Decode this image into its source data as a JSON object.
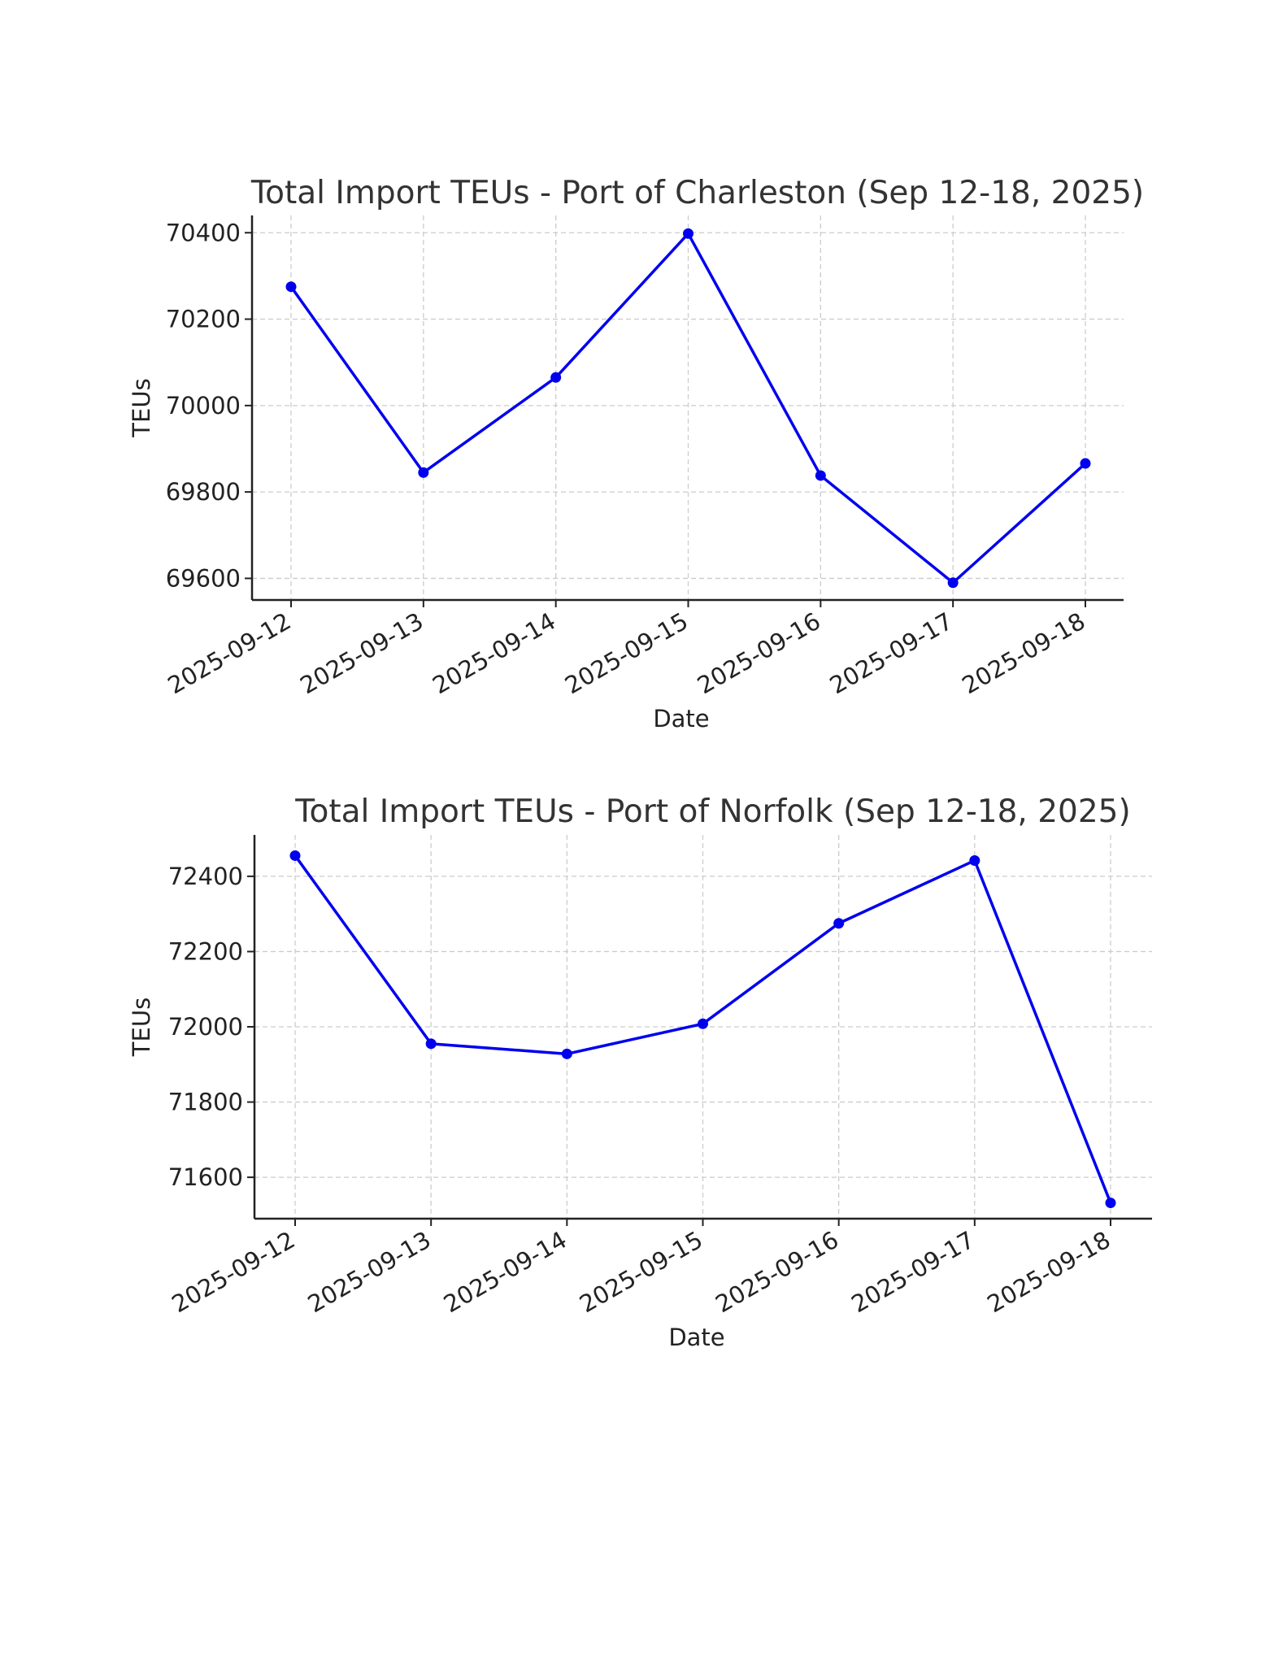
{
  "chart_data": [
    {
      "type": "line",
      "title": "Total Import TEUs - Port of Charleston (Sep 12-18, 2025)",
      "xlabel": "Date",
      "ylabel": "TEUs",
      "x": [
        "2025-09-12",
        "2025-09-13",
        "2025-09-14",
        "2025-09-15",
        "2025-09-16",
        "2025-09-17",
        "2025-09-18"
      ],
      "series": [
        {
          "values": [
            70275,
            69845,
            70065,
            70398,
            69838,
            69590,
            69866
          ],
          "color": "#0000ee"
        }
      ],
      "yticks": [
        69600,
        69800,
        70000,
        70200,
        70400
      ],
      "ylim": [
        69550,
        70440
      ],
      "grid": true,
      "markers": true
    },
    {
      "type": "line",
      "title": "Total Import TEUs - Port of Norfolk (Sep 12-18, 2025)",
      "xlabel": "Date",
      "ylabel": "TEUs",
      "x": [
        "2025-09-12",
        "2025-09-13",
        "2025-09-14",
        "2025-09-15",
        "2025-09-16",
        "2025-09-17",
        "2025-09-18"
      ],
      "series": [
        {
          "values": [
            72455,
            71955,
            71928,
            72008,
            72275,
            72442,
            71532
          ],
          "color": "#0000ee"
        }
      ],
      "yticks": [
        71600,
        71800,
        72000,
        72200,
        72400
      ],
      "ylim": [
        71490,
        72510
      ],
      "grid": true,
      "markers": true
    }
  ]
}
